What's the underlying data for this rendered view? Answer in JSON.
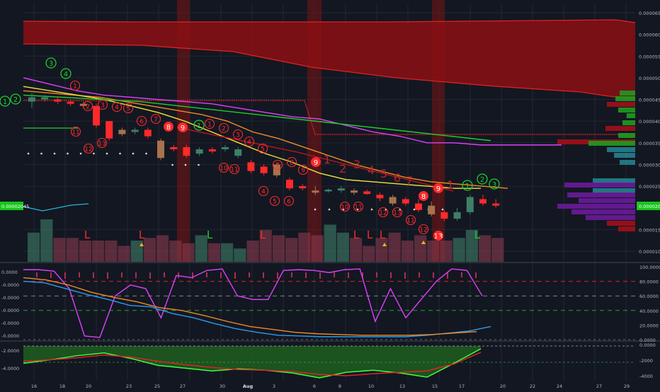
{
  "colors": {
    "background": "#131722",
    "grid": "#232733",
    "cloud": "#8b0f14",
    "cloud_edge": "#e0221f",
    "bull": "#3f7f67",
    "bear": "#ff2a2a",
    "candle_brown": "#a8724c",
    "magenta": "#e040fb",
    "orange": "#f08a24",
    "yellow": "#f3e23a",
    "green": "#1fcc2e",
    "cyan": "#22b7d6",
    "red_line": "#c8141e",
    "osc_blue": "#2b9bf0",
    "highlight_band": "#7a1414",
    "profile_green": "#1e9c1e",
    "profile_teal": "#26808e",
    "profile_purple": "#6a1b9a",
    "profile_red": "#a3101a",
    "price_tag": "#16c71c"
  },
  "chart_data": [
    {
      "type": "candlestick",
      "panel": "main",
      "price_axis_labels": [
        "0.00006500",
        "0.00006000",
        "0.00005500",
        "0.00005000",
        "0.00004500",
        "0.00004000",
        "0.00003500",
        "0.00003000",
        "0.00002500",
        "0.00002045",
        "0.00001500",
        "0.00001000"
      ],
      "current_price_label": "0.00002045",
      "left_axis_labels": [
        "0.00002045"
      ],
      "ylim": [
        8.5e-06,
        6.55e-05
      ],
      "ticks": [
        6.5e-05,
        6e-05,
        5.5e-05,
        5e-05,
        4.5e-05,
        4e-05,
        3.5e-05,
        3e-05,
        2.5e-05,
        1.5e-05,
        1e-05
      ],
      "current_price": 2.045e-05,
      "candles": [
        {
          "o": 4.45,
          "c": 4.55,
          "h": 4.65,
          "l": 4.3
        },
        {
          "o": 4.5,
          "c": 4.55,
          "h": 4.6,
          "l": 4.45
        },
        {
          "o": 4.5,
          "c": 4.45,
          "h": 4.55,
          "l": 4.4
        },
        {
          "o": 4.45,
          "c": 4.4,
          "h": 4.5,
          "l": 4.35
        },
        {
          "o": 4.4,
          "c": 4.35,
          "h": 4.45,
          "l": 4.3
        },
        {
          "o": 4.35,
          "c": 3.9,
          "h": 4.4,
          "l": 3.85
        },
        {
          "o": 4.0,
          "c": 3.6,
          "h": 4.0,
          "l": 3.55
        },
        {
          "o": 3.8,
          "c": 3.7,
          "h": 3.85,
          "l": 3.65
        },
        {
          "o": 3.75,
          "c": 3.8,
          "h": 3.85,
          "l": 3.7
        },
        {
          "o": 3.8,
          "c": 3.65,
          "h": 3.85,
          "l": 3.6
        },
        {
          "o": 3.55,
          "c": 3.15,
          "h": 3.6,
          "l": 3.1
        },
        {
          "o": 3.4,
          "c": 3.35,
          "h": 3.45,
          "l": 3.3
        },
        {
          "o": 3.4,
          "c": 3.2,
          "h": 3.45,
          "l": 3.15
        },
        {
          "o": 3.25,
          "c": 3.35,
          "h": 3.4,
          "l": 3.2
        },
        {
          "o": 3.35,
          "c": 3.3,
          "h": 3.4,
          "l": 3.25
        },
        {
          "o": 3.35,
          "c": 3.4,
          "h": 3.45,
          "l": 3.3
        },
        {
          "o": 3.2,
          "c": 3.35,
          "h": 3.4,
          "l": 3.15
        },
        {
          "o": 3.05,
          "c": 2.85,
          "h": 3.1,
          "l": 2.8
        },
        {
          "o": 2.95,
          "c": 2.8,
          "h": 3.0,
          "l": 2.75
        },
        {
          "o": 3.0,
          "c": 2.75,
          "h": 3.05,
          "l": 2.7
        },
        {
          "o": 2.65,
          "c": 2.45,
          "h": 2.7,
          "l": 2.4
        },
        {
          "o": 2.5,
          "c": 2.45,
          "h": 2.55,
          "l": 2.4
        },
        {
          "o": 2.4,
          "c": 2.35,
          "h": 2.5,
          "l": 2.3
        },
        {
          "o": 2.38,
          "c": 2.42,
          "h": 2.45,
          "l": 2.35
        },
        {
          "o": 2.4,
          "c": 2.45,
          "h": 2.5,
          "l": 2.35
        },
        {
          "o": 2.4,
          "c": 2.35,
          "h": 2.45,
          "l": 2.3
        },
        {
          "o": 2.38,
          "c": 2.32,
          "h": 2.42,
          "l": 2.3
        },
        {
          "o": 2.3,
          "c": 2.22,
          "h": 2.35,
          "l": 2.15
        },
        {
          "o": 2.25,
          "c": 2.1,
          "h": 2.3,
          "l": 2.05
        },
        {
          "o": 2.2,
          "c": 2.1,
          "h": 2.25,
          "l": 2.05
        },
        {
          "o": 2.1,
          "c": 1.95,
          "h": 2.2,
          "l": 1.9
        },
        {
          "o": 2.05,
          "c": 1.85,
          "h": 2.15,
          "l": 1.8
        },
        {
          "o": 1.9,
          "c": 1.75,
          "h": 1.95,
          "l": 1.7
        },
        {
          "o": 1.75,
          "c": 1.9,
          "h": 2.0,
          "l": 1.7
        },
        {
          "o": 1.9,
          "c": 2.25,
          "h": 2.3,
          "l": 1.85
        },
        {
          "o": 2.2,
          "c": 2.1,
          "h": 2.3,
          "l": 2.05
        },
        {
          "o": 2.1,
          "c": 2.05,
          "h": 2.2,
          "l": 2.0
        }
      ],
      "volume": [
        0.55,
        0.8,
        0.45,
        0.45,
        0.4,
        0.4,
        0.4,
        0.3,
        0.4,
        0.45,
        0.5,
        0.4,
        0.35,
        0.5,
        0.35,
        0.35,
        0.25,
        0.4,
        0.6,
        0.5,
        0.45,
        0.55,
        0.5,
        0.7,
        0.55,
        0.45,
        0.3,
        0.45,
        0.55,
        0.4,
        0.5,
        0.4,
        0.4,
        0.45,
        0.6,
        0.5,
        0.45
      ],
      "series": [
        {
          "values": [
            5.0,
            4.85,
            4.7,
            4.6,
            4.55,
            4.5,
            4.45,
            4.4,
            4.3,
            4.2,
            4.1,
            4.05,
            3.9,
            3.75,
            3.65,
            3.5,
            3.5,
            3.45,
            3.45,
            3.45,
            3.45
          ]
        },
        {
          "values": [
            4.7,
            4.65,
            4.6,
            4.55,
            4.45,
            4.35,
            4.25,
            4.15,
            4.0,
            3.75,
            3.6,
            3.4,
            3.2,
            3.0,
            2.85,
            2.7,
            2.6,
            2.55,
            2.5,
            2.45
          ]
        },
        {
          "values": [
            4.8,
            4.7,
            4.6,
            4.5,
            4.35,
            4.2,
            4.0,
            3.75,
            3.5,
            3.25,
            3.05,
            2.8,
            2.65,
            2.6,
            2.55,
            2.5,
            2.45,
            2.45
          ]
        },
        {
          "values": [
            4.6,
            4.55,
            4.5,
            4.45,
            4.35,
            4.25,
            4.15,
            4.05,
            3.95,
            3.85,
            3.75,
            3.65,
            3.55
          ]
        }
      ],
      "x_tick_labels": [
        "16",
        "18",
        "20",
        "23",
        "25",
        "27",
        "30",
        "Aug",
        "3",
        "6",
        "8",
        "10",
        "13",
        "15",
        "17",
        "20",
        "22",
        "24",
        "27",
        "29"
      ],
      "annotations": {
        "count_labels": [
          "1",
          "2",
          "3",
          "4",
          "5",
          "6",
          "7",
          "8",
          "9",
          "10",
          "11",
          "12",
          "13"
        ],
        "signal_L": "L"
      }
    },
    {
      "type": "line",
      "panel": "oscillator",
      "axis_labels": [
        "100.0000",
        "80.0000",
        "60.0000",
        "40.0000",
        "20.0000",
        "0.0000"
      ],
      "left_axis_labels": [
        "0.0000",
        "-0.0000",
        "-0.0000",
        "-0.0000",
        "-0.0000",
        "-0.0000"
      ],
      "ylim": [
        0,
        100
      ],
      "levels": [
        80,
        60,
        40
      ],
      "series": [
        {
          "values": [
            96,
            96,
            94,
            70,
            5,
            3,
            60,
            75,
            70,
            30,
            88,
            85,
            95,
            97,
            60,
            55,
            55,
            95,
            96,
            95,
            92,
            96,
            97,
            25,
            70,
            30,
            55,
            80,
            97,
            95,
            60
          ]
        },
        {
          "values": [
            80,
            78,
            70,
            62,
            55,
            47,
            45,
            36,
            30,
            22,
            15,
            10,
            6,
            5,
            4,
            4,
            4,
            4,
            4,
            6,
            9,
            12,
            18
          ]
        },
        {
          "values": [
            85,
            82,
            75,
            65,
            58,
            52,
            44,
            40,
            33,
            25,
            18,
            14,
            10,
            8,
            7,
            6,
            6,
            6,
            7,
            9,
            11
          ]
        }
      ]
    },
    {
      "type": "area",
      "panel": "lower",
      "axis_labels": [
        "0.0000",
        "-2.0000",
        "-4.0000"
      ],
      "left_axis_labels": [
        "-2.0000",
        "-4.0000"
      ],
      "right_axis_labels": [
        "0.0000",
        "-2000",
        "-4000"
      ],
      "ylim": [
        -5,
        0.5
      ],
      "series": [
        {
          "values": [
            -2.5,
            -2.0,
            -1.4,
            -1.0,
            -1.8,
            -2.8,
            -3.2,
            -3.6,
            -3.3,
            -3.5,
            -3.9,
            -4.6,
            -3.8,
            -3.5,
            -3.9,
            -4.5,
            -2.5,
            -0.4
          ]
        },
        {
          "values": [
            -2.2,
            -2.0,
            -1.7,
            -1.3,
            -1.6,
            -2.2,
            -2.7,
            -3.1,
            -3.4,
            -3.5,
            -3.7,
            -4.1,
            -4.3,
            -4.0,
            -3.8,
            -3.6,
            -2.6,
            -0.9
          ]
        }
      ]
    }
  ]
}
